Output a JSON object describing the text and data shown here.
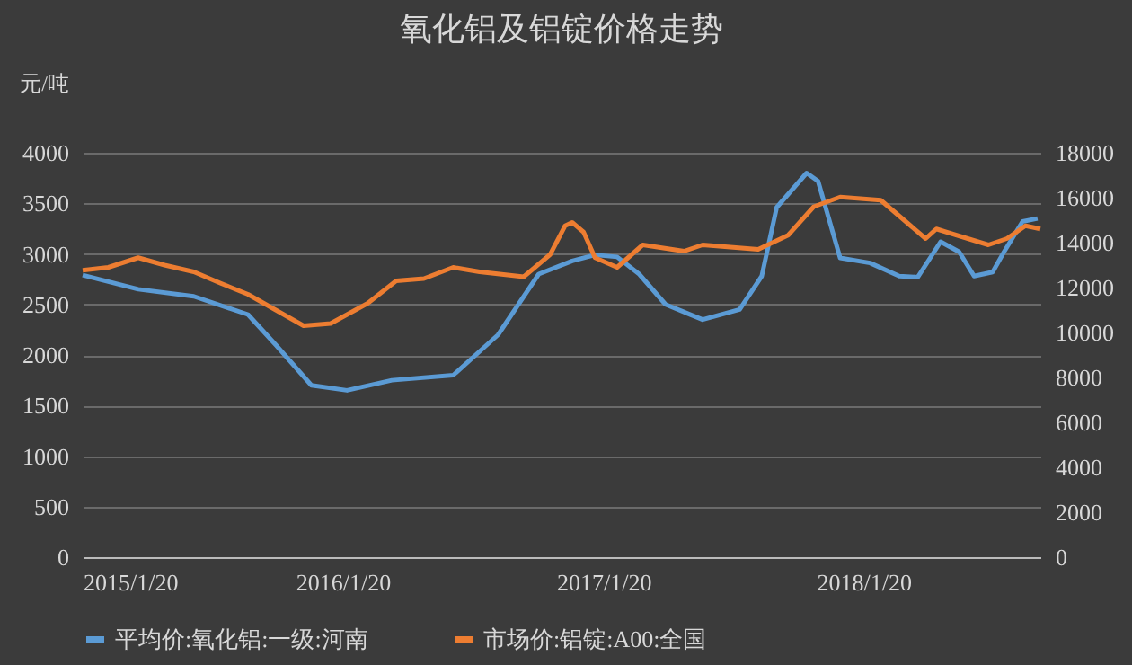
{
  "chart_data": {
    "type": "line",
    "title": "氧化铝及铝锭价格走势",
    "ylabel": "元/吨",
    "xlim": [
      "2015-01-20",
      "2018-09-25"
    ],
    "xticks": [
      {
        "value": "2015-01-20",
        "label": "2015/1/20"
      },
      {
        "value": "2016-01-20",
        "label": "2016/1/20"
      },
      {
        "value": "2017-01-20",
        "label": "2017/1/20"
      },
      {
        "value": "2018-01-20",
        "label": "2018/1/20"
      }
    ],
    "ylim": [
      0,
      4000
    ],
    "yticks": [
      0,
      500,
      1000,
      1500,
      2000,
      2500,
      3000,
      3500,
      4000
    ],
    "y2lim": [
      0,
      18000
    ],
    "y2ticks": [
      0,
      2000,
      4000,
      6000,
      8000,
      10000,
      12000,
      14000,
      16000,
      18000
    ],
    "grid": "y",
    "legend": "bottom",
    "marker": "none",
    "line_style": "solid",
    "series": [
      {
        "name": "平均价:氧化铝:一级:河南",
        "color": "#5b9bd5",
        "x": [
          "2015-01-20",
          "2015-04-08",
          "2015-06-25",
          "2015-09-09",
          "2015-10-18",
          "2015-12-07",
          "2016-01-26",
          "2016-03-29",
          "2016-06-23",
          "2016-08-25",
          "2016-10-21",
          "2016-12-07",
          "2017-01-08",
          "2017-02-08",
          "2017-03-11",
          "2017-04-17",
          "2017-06-08",
          "2017-07-30",
          "2017-08-30",
          "2017-09-20",
          "2017-11-01",
          "2017-11-17",
          "2017-12-18",
          "2018-01-29",
          "2018-03-11",
          "2018-04-06",
          "2018-05-08",
          "2018-06-03",
          "2018-06-24",
          "2018-07-20",
          "2018-08-05",
          "2018-08-31",
          "2018-09-21"
        ],
        "values": [
          2790,
          2650,
          2580,
          2400,
          2100,
          1700,
          1650,
          1750,
          1800,
          2200,
          2800,
          2930,
          2990,
          2970,
          2800,
          2500,
          2350,
          2450,
          2780,
          3460,
          3800,
          3720,
          2960,
          2910,
          2780,
          2770,
          3120,
          3020,
          2780,
          2820,
          3020,
          3320,
          3350
        ]
      },
      {
        "name": "市场价:铝锭:A00:全国",
        "color": "#ed7d31",
        "axis": "y2",
        "x": [
          "2015-01-20",
          "2015-02-25",
          "2015-04-08",
          "2015-05-15",
          "2015-06-25",
          "2015-08-01",
          "2015-09-09",
          "2015-10-18",
          "2015-11-26",
          "2016-01-03",
          "2016-02-24",
          "2016-04-04",
          "2016-05-13",
          "2016-06-23",
          "2016-07-30",
          "2016-09-30",
          "2016-11-06",
          "2016-11-27",
          "2016-12-07",
          "2016-12-23",
          "2017-01-08",
          "2017-02-08",
          "2017-03-16",
          "2017-05-13",
          "2017-06-08",
          "2017-08-25",
          "2017-10-06",
          "2017-11-11",
          "2017-12-18",
          "2018-02-13",
          "2018-03-27",
          "2018-04-17",
          "2018-05-02",
          "2018-07-14",
          "2018-08-09",
          "2018-09-04",
          "2018-09-25"
        ],
        "values": [
          12770,
          12900,
          13330,
          13000,
          12700,
          12200,
          11700,
          11000,
          10300,
          10400,
          11300,
          12300,
          12400,
          12900,
          12700,
          12480,
          13470,
          14750,
          14900,
          14470,
          13330,
          12900,
          13900,
          13620,
          13900,
          13700,
          14330,
          15600,
          16030,
          15890,
          14750,
          14180,
          14610,
          13900,
          14180,
          14750,
          14610
        ]
      }
    ]
  }
}
